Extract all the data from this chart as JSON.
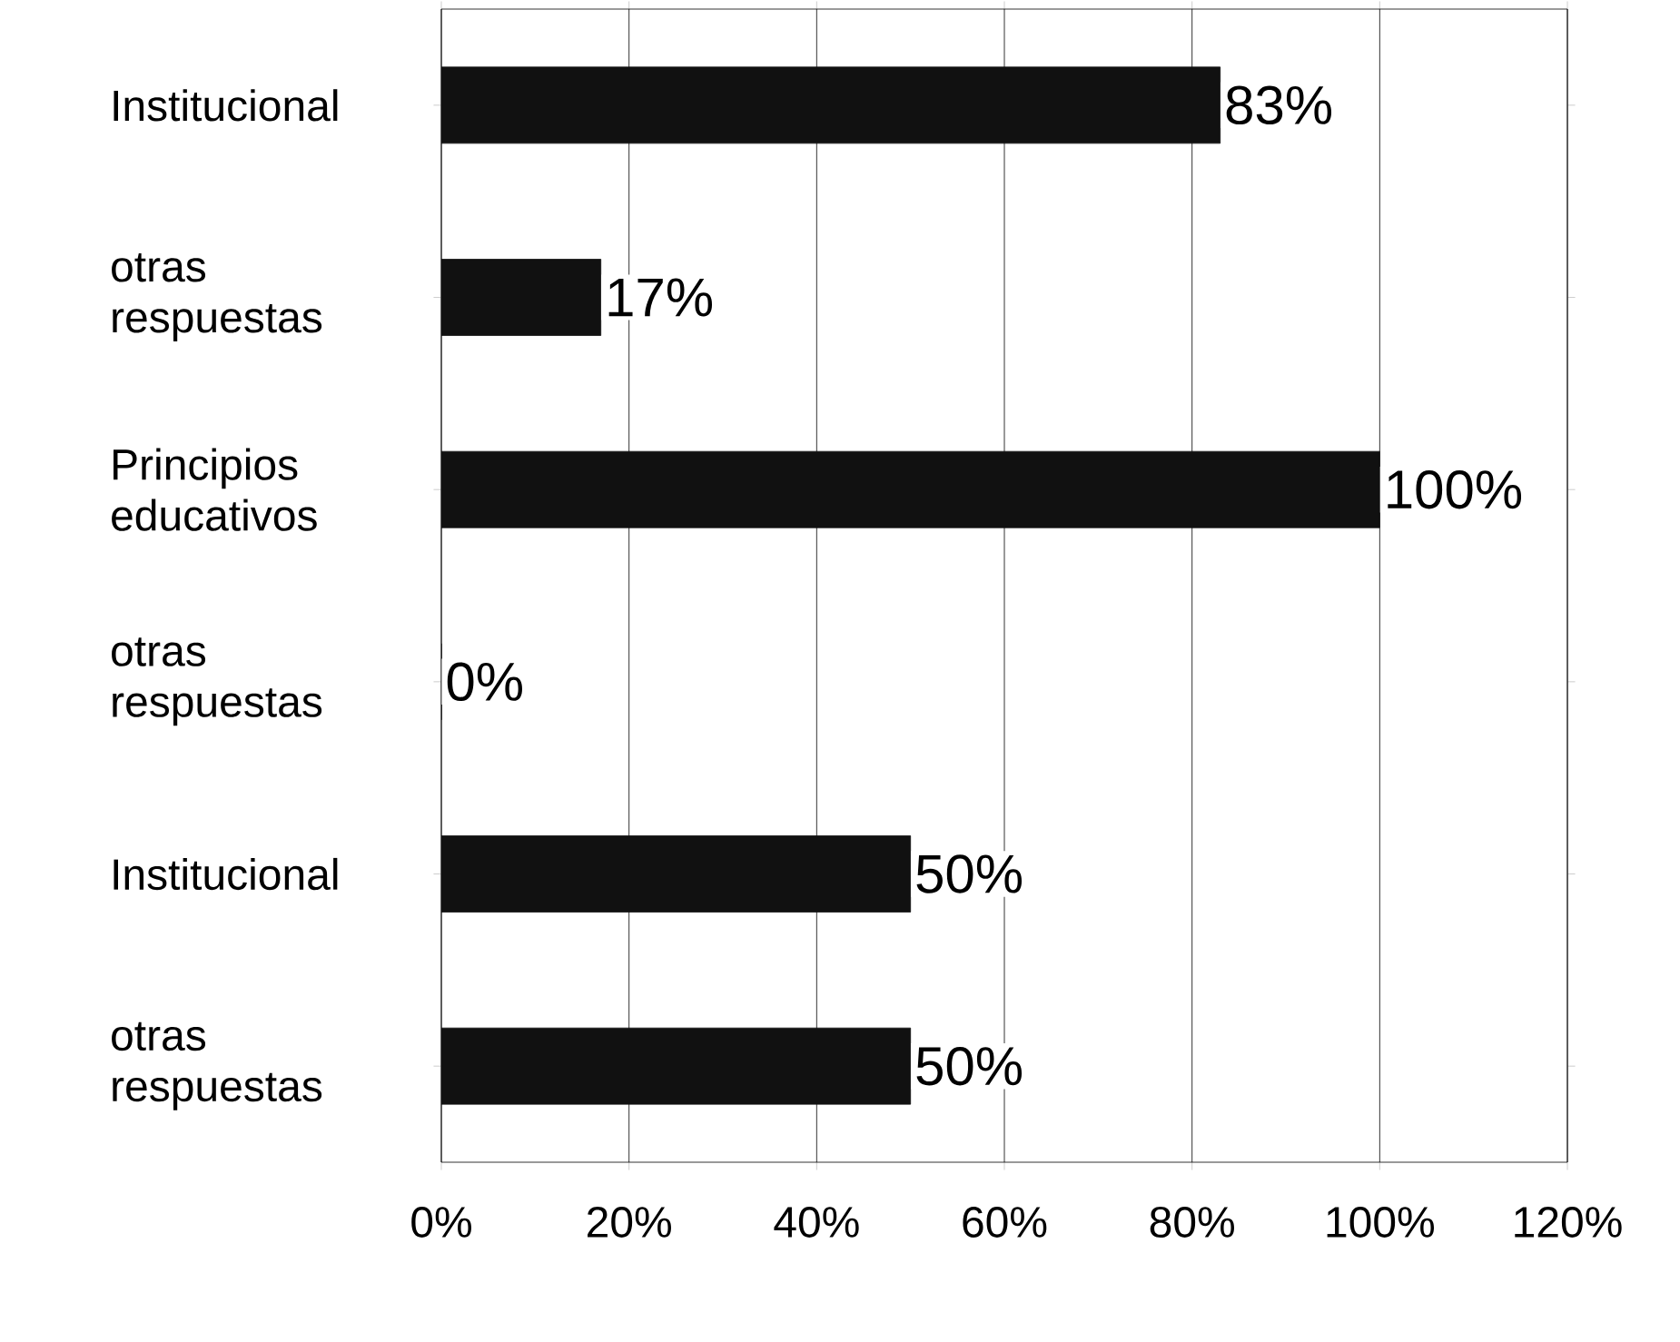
{
  "chart_data": {
    "type": "bar",
    "orientation": "horizontal",
    "categories": [
      "Institucional",
      "otras respuestas",
      "Principios educativos",
      "otras respuestas",
      "Institucional",
      "otras respuestas"
    ],
    "values": [
      83,
      17,
      100,
      0,
      50,
      50
    ],
    "value_labels": [
      "83%",
      "17%",
      "100%",
      "0%",
      "50%",
      "50%"
    ],
    "color": "#111111",
    "xlim": [
      0,
      120
    ],
    "xticks": [
      {
        "value": 0,
        "label": "0%"
      },
      {
        "value": 20,
        "label": "20%"
      },
      {
        "value": 40,
        "label": "40%"
      },
      {
        "value": 60,
        "label": "60%"
      },
      {
        "value": 80,
        "label": "80%"
      },
      {
        "value": 100,
        "label": "100%"
      },
      {
        "value": 120,
        "label": "120%"
      }
    ],
    "grid": "x"
  }
}
